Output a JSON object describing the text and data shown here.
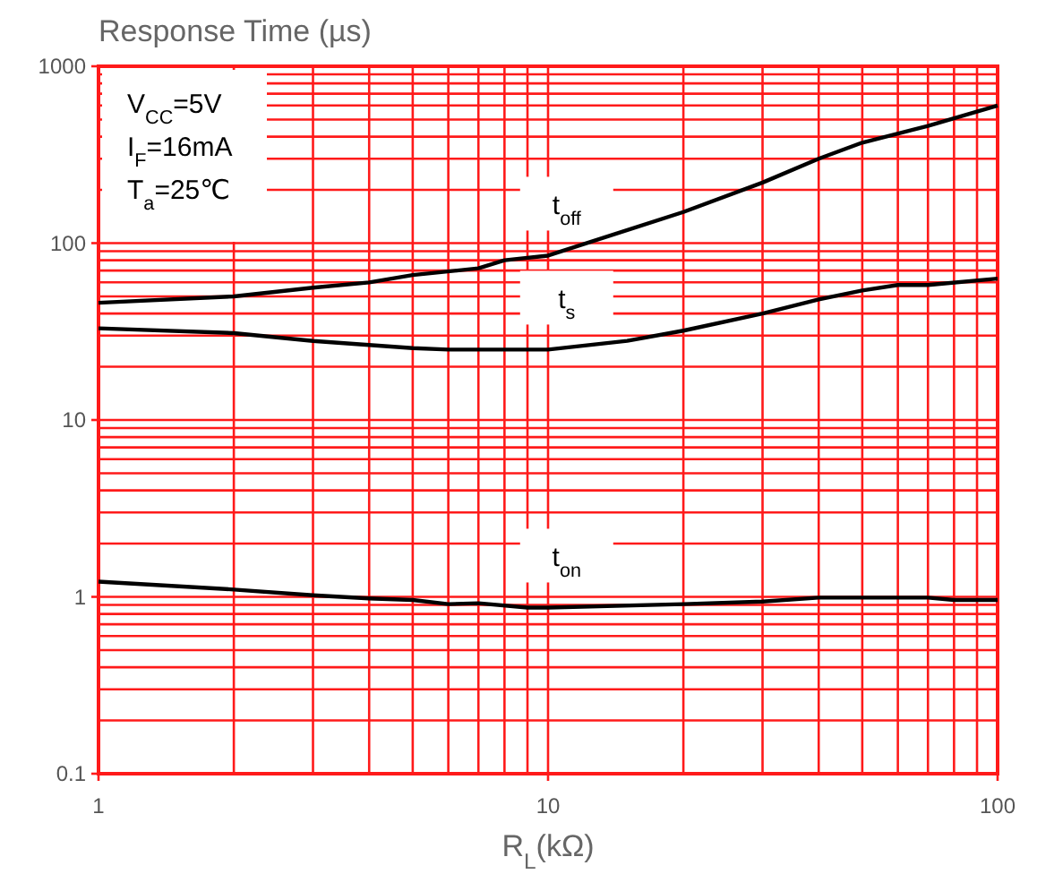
{
  "chart_data": {
    "type": "line",
    "ylabel": "Response Time (µs)",
    "xlabel": "R$_{L}$(kΩ)",
    "log": "xy",
    "grid": true,
    "xlim": [
      1,
      100
    ],
    "ylim": [
      0.1,
      1000
    ],
    "xticks": [
      1,
      10,
      100
    ],
    "yticks": [
      0.1,
      1,
      10,
      100,
      1000
    ],
    "annotations": [
      "V$_{CC}$=5V",
      "I$_{F}$=16mA",
      "T$_{a}$=25℃"
    ],
    "series": [
      {
        "name": "t$_{off}$",
        "color": "#000000",
        "x": [
          1,
          2,
          3,
          4,
          5,
          7,
          8,
          10,
          20,
          30,
          40,
          50,
          70,
          100
        ],
        "values": [
          46,
          50,
          56,
          60,
          66,
          72,
          80,
          85,
          150,
          220,
          300,
          370,
          460,
          600
        ]
      },
      {
        "name": "t$_{s}$",
        "color": "#000000",
        "x": [
          1,
          2,
          3,
          5,
          6,
          10,
          15,
          20,
          30,
          40,
          50,
          60,
          70,
          100
        ],
        "values": [
          33,
          31,
          28,
          25.5,
          25,
          25,
          28,
          32,
          40,
          48,
          54,
          58,
          58,
          63
        ]
      },
      {
        "name": "t$_{on}$",
        "color": "#000000",
        "x": [
          1,
          2,
          3,
          4,
          5,
          6,
          7,
          9,
          10,
          20,
          30,
          40,
          70,
          80,
          100
        ],
        "values": [
          1.22,
          1.1,
          1.02,
          0.98,
          0.96,
          0.91,
          0.92,
          0.87,
          0.87,
          0.91,
          0.94,
          0.99,
          0.99,
          0.96,
          0.96
        ]
      }
    ]
  }
}
